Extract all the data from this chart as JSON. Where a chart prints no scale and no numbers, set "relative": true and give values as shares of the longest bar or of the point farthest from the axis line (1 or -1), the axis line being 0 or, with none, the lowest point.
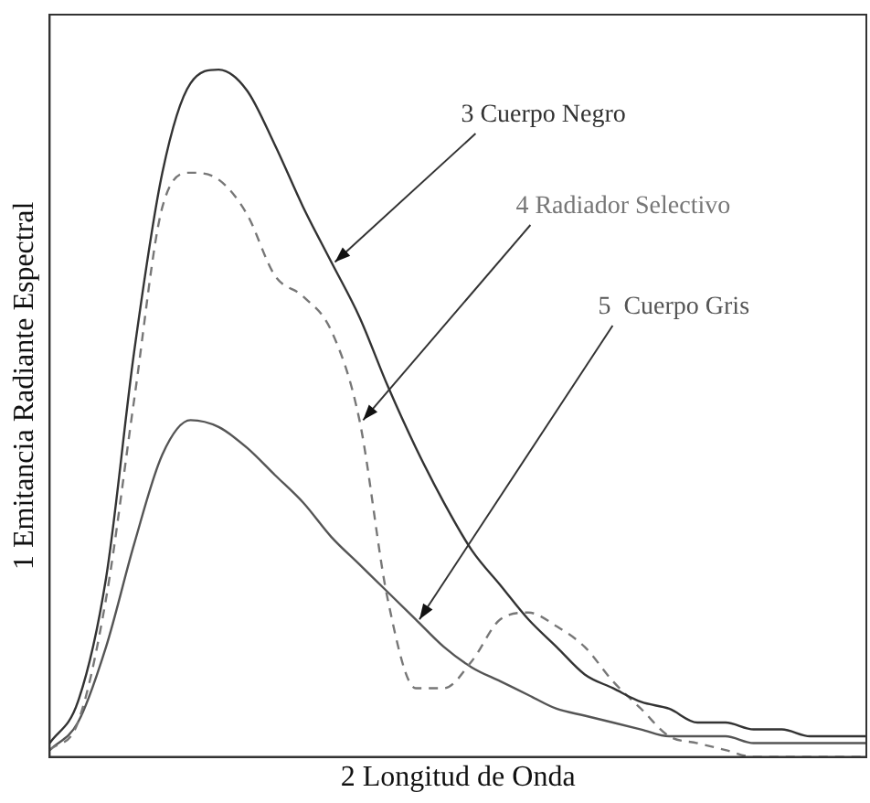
{
  "chart_data": {
    "type": "line",
    "relative": true,
    "xlabel": "2 Longitud de Onda",
    "ylabel": "1 Emitancia Radiante Espectral",
    "categories": [
      null,
      null,
      null,
      null,
      null,
      null,
      null,
      null,
      null,
      null,
      null,
      null,
      null,
      null,
      null,
      null,
      null,
      null,
      null,
      null,
      null,
      null,
      null,
      null,
      null,
      null,
      null,
      null,
      null,
      null
    ],
    "series": [
      {
        "name": "3 Cuerpo Negro",
        "color": "#333333",
        "line_style": "solid",
        "values": [
          0.02,
          0.08,
          0.26,
          0.59,
          0.85,
          0.98,
          1.0,
          0.97,
          0.89,
          0.8,
          0.72,
          0.64,
          0.54,
          0.45,
          0.37,
          0.3,
          0.25,
          0.2,
          0.16,
          0.12,
          0.1,
          0.08,
          0.07,
          0.05,
          0.05,
          0.04,
          0.04,
          0.03,
          0.03,
          0.03
        ]
      },
      {
        "name": "4 Radiador Selectivo",
        "color": "#777777",
        "line_style": "dashed",
        "values": [
          0.01,
          0.05,
          0.23,
          0.52,
          0.8,
          0.85,
          0.84,
          0.79,
          0.7,
          0.67,
          0.62,
          0.49,
          0.23,
          0.1,
          0.1,
          0.14,
          0.2,
          0.21,
          0.19,
          0.16,
          0.11,
          0.07,
          0.03,
          0.02,
          0.01,
          0,
          0,
          0,
          0,
          0
        ]
      },
      {
        "name": "5  Cuerpo Gris",
        "color": "#555555",
        "line_style": "solid",
        "values": [
          0.01,
          0.05,
          0.16,
          0.31,
          0.44,
          0.49,
          0.48,
          0.45,
          0.41,
          0.37,
          0.32,
          0.28,
          0.24,
          0.2,
          0.16,
          0.13,
          0.11,
          0.09,
          0.07,
          0.06,
          0.05,
          0.04,
          0.03,
          0.03,
          0.03,
          0.02,
          0.02,
          0.02,
          0.02,
          0.02
        ]
      }
    ],
    "marker": "none",
    "grid": false,
    "legend": false
  }
}
